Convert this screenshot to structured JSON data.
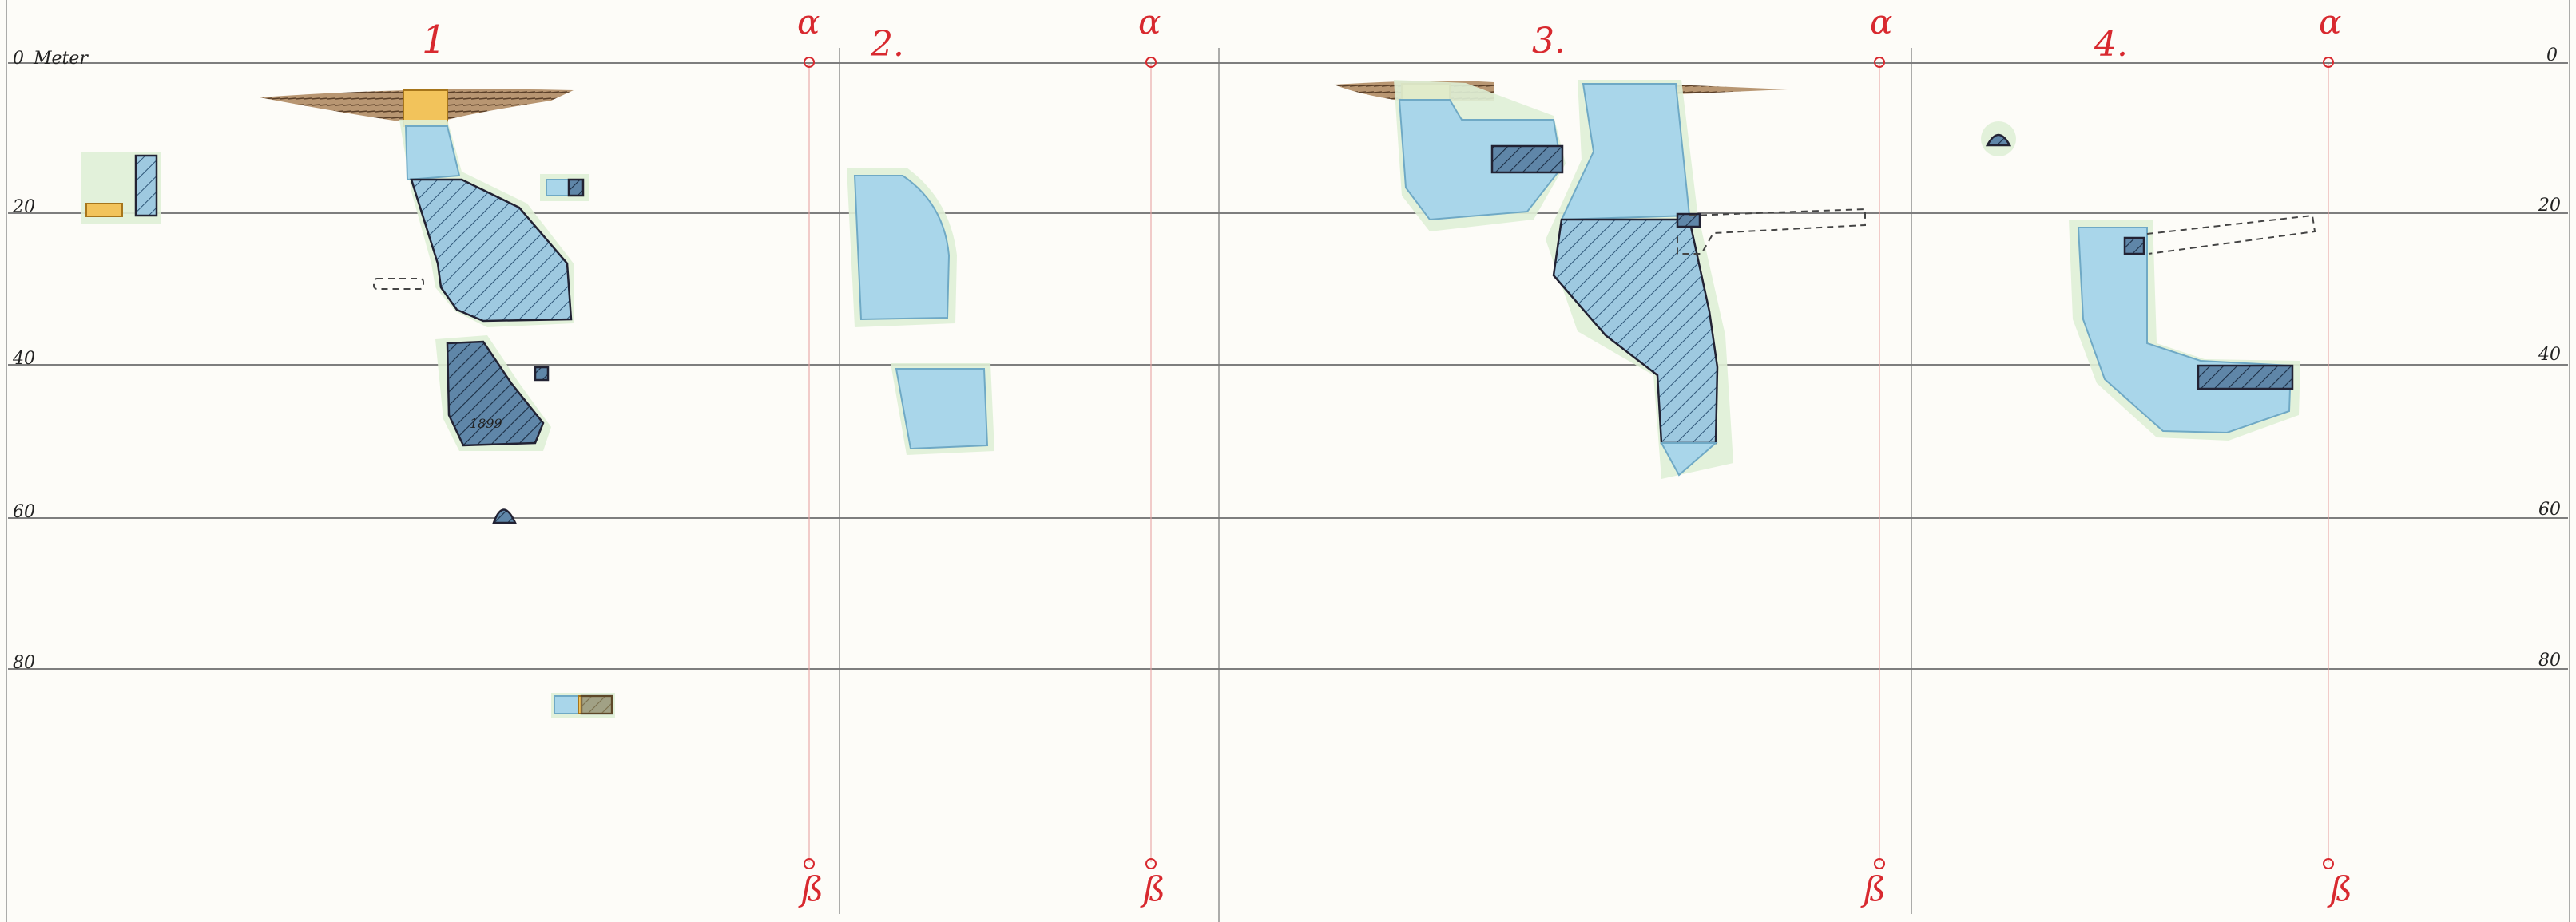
{
  "scale": {
    "unit_label": "Meter",
    "left_depth_labels": [
      "0",
      "20",
      "40",
      "60",
      "80"
    ],
    "right_depth_labels": [
      "0",
      "20",
      "40",
      "60",
      "80"
    ]
  },
  "sections": [
    {
      "number": "1"
    },
    {
      "number": "2."
    },
    {
      "number": "3."
    },
    {
      "number": "4."
    }
  ],
  "markers": {
    "top": "α",
    "bottom": "ß"
  },
  "annotations": {
    "sample_label_1": "1899"
  },
  "colors": {
    "water": "#a9d6ea",
    "hatched_rock": "#4f7fa8",
    "ochre": "#f2c35b",
    "marker_red": "#d8292f",
    "halo": "#dff0d6"
  }
}
